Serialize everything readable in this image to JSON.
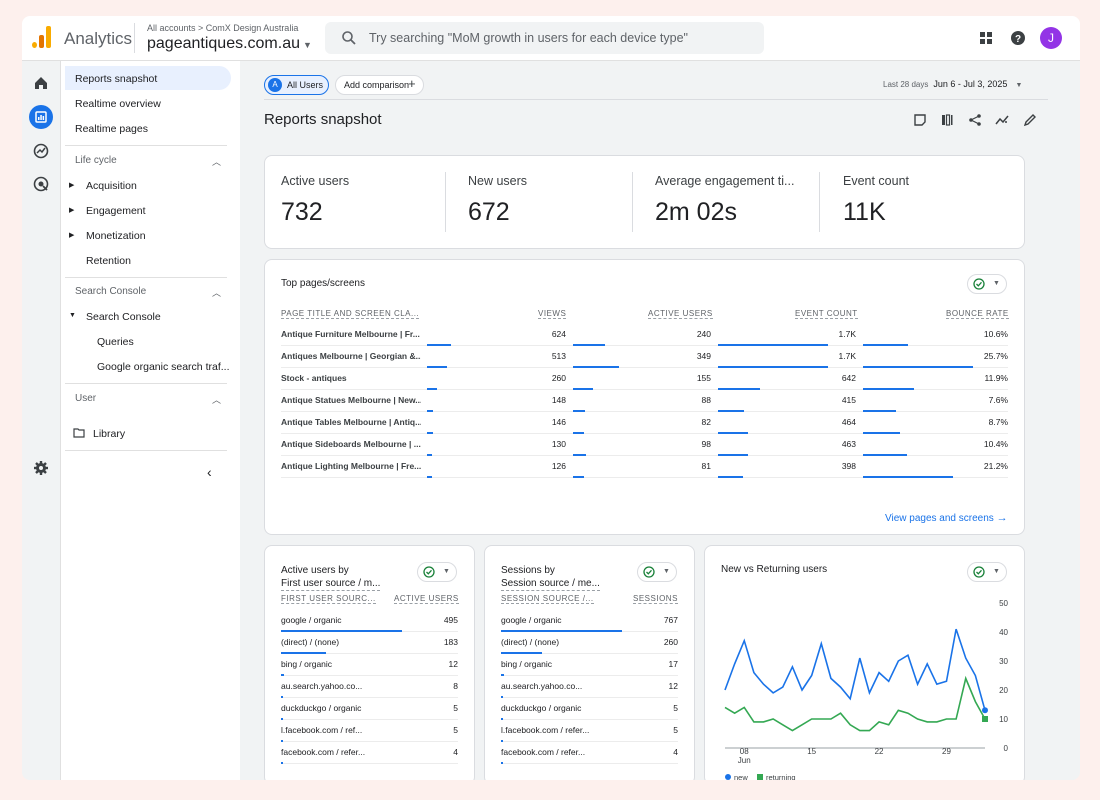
{
  "topbar": {
    "brand": "Analytics",
    "breadcrumb": "All accounts > ComX Design Australia",
    "property": "pageantiques.com.au",
    "search_placeholder": "Try searching \"MoM growth in users for each device type\"",
    "avatar": "J"
  },
  "nav": {
    "items": [
      "Reports snapshot",
      "Realtime overview",
      "Realtime pages"
    ],
    "lifecycle": {
      "title": "Life cycle",
      "items": [
        "Acquisition",
        "Engagement",
        "Monetization",
        "Retention"
      ]
    },
    "search_console": {
      "title": "Search Console",
      "group": "Search Console",
      "items": [
        "Queries",
        "Google organic search traf..."
      ]
    },
    "user": {
      "title": "User",
      "library": "Library"
    }
  },
  "main": {
    "chips": {
      "all_users": "All Users",
      "all_users_badge": "A",
      "add_comparison": "Add comparison"
    },
    "date": {
      "label": "Last 28 days",
      "range": "Jun 6 - Jul 3, 2025"
    },
    "title": "Reports snapshot"
  },
  "kpis": [
    {
      "label": "Active users",
      "value": "732"
    },
    {
      "label": "New users",
      "value": "672"
    },
    {
      "label": "Average engagement ti...",
      "value": "2m 02s"
    },
    {
      "label": "Event count",
      "value": "11K"
    }
  ],
  "top_pages": {
    "title": "Top pages/screens",
    "headers": [
      "PAGE TITLE AND SCREEN CLA...",
      "VIEWS",
      "ACTIVE USERS",
      "EVENT COUNT",
      "BOUNCE RATE"
    ],
    "rows": [
      [
        "Antique Furniture Melbourne | Fr...",
        "624",
        "240",
        "1.7K",
        "10.6%"
      ],
      [
        "Antiques Melbourne | Georgian &...",
        "513",
        "349",
        "1.7K",
        "25.7%"
      ],
      [
        "Stock - antiques",
        "260",
        "155",
        "642",
        "11.9%"
      ],
      [
        "Antique Statues Melbourne | New...",
        "148",
        "88",
        "415",
        "7.6%"
      ],
      [
        "Antique Tables Melbourne | Antiq...",
        "146",
        "82",
        "464",
        "8.7%"
      ],
      [
        "Antique Sideboards Melbourne | ...",
        "130",
        "98",
        "463",
        "10.4%"
      ],
      [
        "Antique Lighting Melbourne | Fre...",
        "126",
        "81",
        "398",
        "21.2%"
      ]
    ],
    "bar_fraction": [
      [
        1.0,
        0.69,
        1.0,
        0.41
      ],
      [
        0.82,
        1.0,
        1.0,
        1.0
      ],
      [
        0.42,
        0.44,
        0.38,
        0.46
      ],
      [
        0.24,
        0.25,
        0.24,
        0.3
      ],
      [
        0.23,
        0.23,
        0.27,
        0.34
      ],
      [
        0.21,
        0.28,
        0.27,
        0.4
      ],
      [
        0.2,
        0.23,
        0.23,
        0.82
      ]
    ],
    "link": "View pages and screens"
  },
  "active_users_card": {
    "title_line1": "Active users by",
    "title_line2": "First user source / m...",
    "headers": [
      "FIRST USER SOURC...",
      "ACTIVE USERS"
    ],
    "rows": [
      [
        "google / organic",
        "495"
      ],
      [
        "(direct) / (none)",
        "183"
      ],
      [
        "bing / organic",
        "12"
      ],
      [
        "au.search.yahoo.co...",
        "8"
      ],
      [
        "duckduckgo / organic",
        "5"
      ],
      [
        "l.facebook.com / ref...",
        "5"
      ],
      [
        "facebook.com / refer...",
        "4"
      ]
    ],
    "bar_fraction": [
      1.0,
      0.37,
      0.024,
      0.016,
      0.01,
      0.01,
      0.008
    ]
  },
  "sessions_card": {
    "title_line1": "Sessions by",
    "title_line2": "Session source / me...",
    "headers": [
      "SESSION SOURCE /...",
      "SESSIONS"
    ],
    "rows": [
      [
        "google / organic",
        "767"
      ],
      [
        "(direct) / (none)",
        "260"
      ],
      [
        "bing / organic",
        "17"
      ],
      [
        "au.search.yahoo.co...",
        "12"
      ],
      [
        "duckduckgo / organic",
        "5"
      ],
      [
        "l.facebook.com / refer...",
        "5"
      ],
      [
        "facebook.com / refer...",
        "4"
      ]
    ],
    "bar_fraction": [
      1.0,
      0.34,
      0.022,
      0.016,
      0.007,
      0.007,
      0.005
    ]
  },
  "colors": {
    "accent": "#1a73e8",
    "returning": "#34a853"
  },
  "chart_data": {
    "type": "line",
    "title": "New vs Returning users",
    "x": [
      "Jun 06",
      "Jun 07",
      "Jun 08",
      "Jun 09",
      "Jun 10",
      "Jun 11",
      "Jun 12",
      "Jun 13",
      "Jun 14",
      "Jun 15",
      "Jun 16",
      "Jun 17",
      "Jun 18",
      "Jun 19",
      "Jun 20",
      "Jun 21",
      "Jun 22",
      "Jun 23",
      "Jun 24",
      "Jun 25",
      "Jun 26",
      "Jun 27",
      "Jun 28",
      "Jun 29",
      "Jun 30",
      "Jul 01",
      "Jul 02",
      "Jul 03"
    ],
    "x_tick_labels": [
      "08\nJun",
      "15",
      "22",
      "29"
    ],
    "series": [
      {
        "name": "new",
        "values": [
          20,
          29,
          37,
          26,
          22,
          19,
          21,
          28,
          20,
          25,
          36,
          24,
          21,
          17,
          31,
          19,
          26,
          23,
          30,
          32,
          22,
          29,
          22,
          23,
          41,
          31,
          25,
          13
        ]
      },
      {
        "name": "returning",
        "values": [
          14,
          12,
          14,
          9,
          9,
          10,
          8,
          6,
          8,
          10,
          10,
          10,
          12,
          8,
          6,
          6,
          9,
          8,
          13,
          12,
          10,
          9,
          9,
          10,
          10,
          24,
          16,
          10
        ]
      }
    ],
    "ylim": [
      0,
      50
    ],
    "yticks": [
      0,
      10,
      20,
      30,
      40,
      50
    ],
    "legend": "bottom-left",
    "colors": [
      "#1a73e8",
      "#34a853"
    ]
  }
}
